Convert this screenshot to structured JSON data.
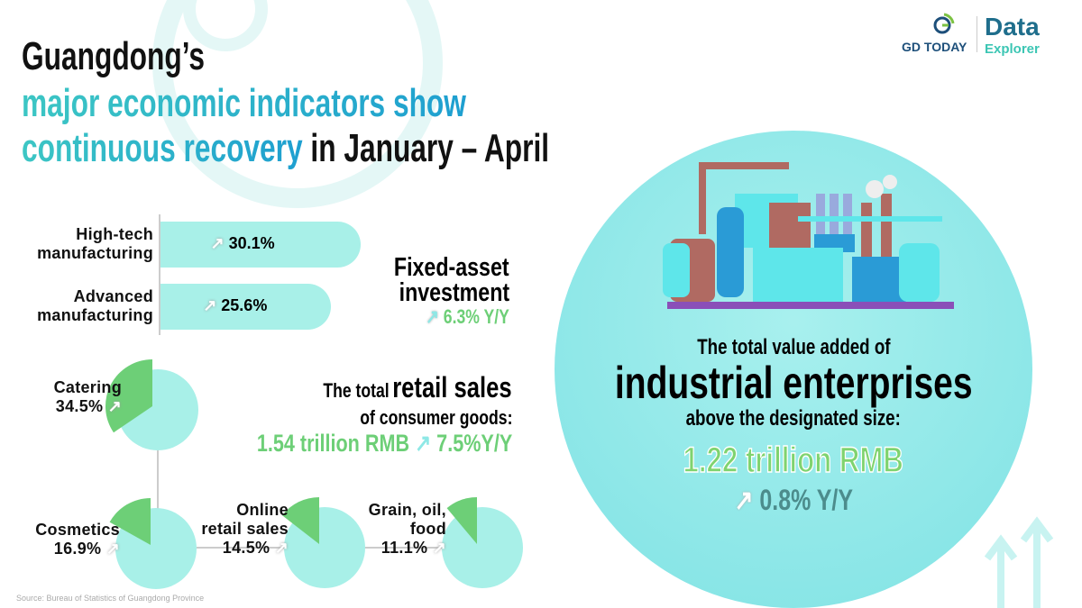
{
  "title": {
    "line1": "Guangdong’s",
    "line2": "major economic indicators show",
    "line3_teal": "continuous recovery",
    "line3_black": " in January – April"
  },
  "logo": {
    "gd": "GD TODAY",
    "data": "Data",
    "explorer": "Explorer"
  },
  "colors": {
    "teal": "#3cc6c4",
    "green": "#6dcf77",
    "bar": "#a8f0e8",
    "circle": "#8ee8e6",
    "dark_teal": "#4c8c8c"
  },
  "fixed_asset": {
    "line1": "Fixed-asset",
    "line2": "investment",
    "value": "6.3% Y/Y"
  },
  "retail": {
    "prefix": "The total",
    "bold": "retail sales",
    "line2": "of consumer goods:",
    "amount": "1.54 trillion RMB",
    "growth": "7.5%Y/Y"
  },
  "industrial": {
    "line1": "The total value added of",
    "line2": "industrial enterprises",
    "line3": "above the designated size:",
    "amount": "1.22 trillion RMB",
    "growth": "0.8% Y/Y"
  },
  "source": "Source: Bureau of Statistics of Guangdong Province",
  "chart_data": [
    {
      "type": "bar",
      "categories": [
        "High-tech manufacturing",
        "Advanced manufacturing"
      ],
      "values": [
        30.1,
        25.6
      ],
      "labels": [
        "30.1%",
        "25.6%"
      ],
      "unit": "%"
    },
    {
      "type": "pie",
      "categories": [
        "Catering",
        "Cosmetics",
        "Online retail sales",
        "Grain, oil, food"
      ],
      "label_lines": [
        [
          "Catering"
        ],
        [
          "Cosmetics"
        ],
        [
          "Online",
          "retail sales"
        ],
        [
          "Grain, oil,",
          "food"
        ]
      ],
      "values": [
        34.5,
        16.9,
        14.5,
        11.1
      ],
      "labels": [
        "34.5%",
        "16.9%",
        "14.5%",
        "11.1%"
      ],
      "unit": "%"
    }
  ]
}
